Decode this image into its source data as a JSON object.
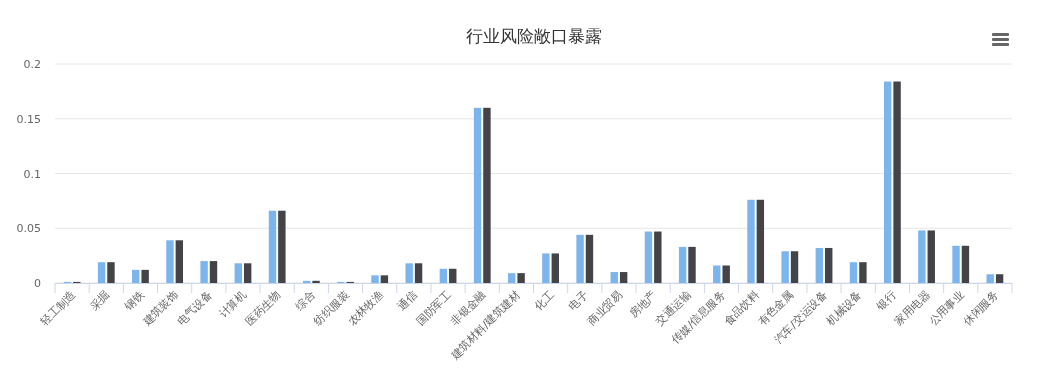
{
  "chart_data": {
    "type": "bar",
    "title": "行业风险敞口暴露",
    "categories": [
      "轻工制造",
      "采掘",
      "钢铁",
      "建筑装饰",
      "电气设备",
      "计算机",
      "医药生物",
      "综合",
      "纺织服装",
      "农林牧渔",
      "通信",
      "国防军工",
      "非银金融",
      "建筑材料/建筑建材",
      "化工",
      "电子",
      "商业贸易",
      "房地产",
      "交通运输",
      "传媒/信息服务",
      "食品饮料",
      "有色金属",
      "汽车/交运设备",
      "机械设备",
      "银行",
      "家用电器",
      "公用事业",
      "休闲服务"
    ],
    "series": [
      {
        "color": "#7cb5ec",
        "values": [
          0.001,
          0.019,
          0.012,
          0.039,
          0.02,
          0.018,
          0.066,
          0.002,
          0.001,
          0.007,
          0.018,
          0.013,
          0.16,
          0.009,
          0.027,
          0.044,
          0.01,
          0.047,
          0.033,
          0.016,
          0.076,
          0.029,
          0.032,
          0.019,
          0.184,
          0.048,
          0.034,
          0.008
        ]
      },
      {
        "color": "#434348",
        "values": [
          0.001,
          0.019,
          0.012,
          0.039,
          0.02,
          0.018,
          0.066,
          0.002,
          0.001,
          0.007,
          0.018,
          0.013,
          0.16,
          0.009,
          0.027,
          0.044,
          0.01,
          0.047,
          0.033,
          0.016,
          0.076,
          0.029,
          0.032,
          0.019,
          0.184,
          0.048,
          0.034,
          0.008
        ]
      }
    ],
    "ylim": [
      0,
      0.2
    ],
    "yticks": [
      0,
      0.05,
      0.1,
      0.15,
      0.2
    ],
    "grid": "y"
  }
}
